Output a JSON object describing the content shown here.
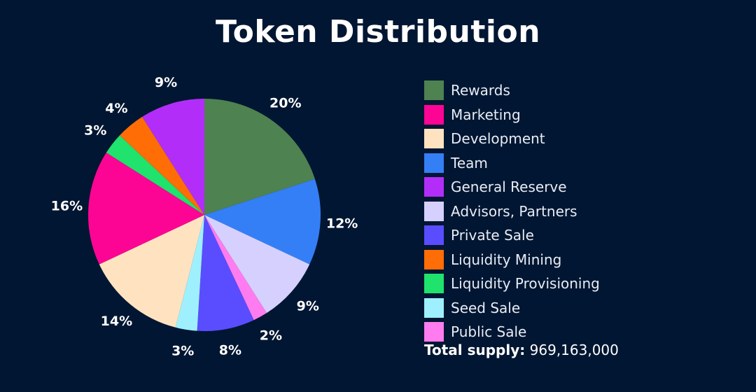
{
  "title": "Token Distribution",
  "total": {
    "label": "Total supply:",
    "value": "969,163,000"
  },
  "chart_data": {
    "type": "pie",
    "start": "12 o'clock",
    "direction": "clockwise",
    "slices": [
      {
        "name": "Rewards",
        "value": 20,
        "label": "20%",
        "color": "#4e8251"
      },
      {
        "name": "Team",
        "value": 12,
        "label": "12%",
        "color": "#347ff6"
      },
      {
        "name": "Advisors, Partners",
        "value": 9,
        "label": "9%",
        "color": "#d6d0ff"
      },
      {
        "name": "Public Sale",
        "value": 2,
        "label": "2%",
        "color": "#ff7cf0"
      },
      {
        "name": "Private Sale",
        "value": 8,
        "label": "8%",
        "color": "#5a4dff"
      },
      {
        "name": "Seed Sale",
        "value": 3,
        "label": "3%",
        "color": "#9ff0ff"
      },
      {
        "name": "Development",
        "value": 14,
        "label": "14%",
        "color": "#ffe3c0"
      },
      {
        "name": "Marketing",
        "value": 16,
        "label": "16%",
        "color": "#fc0594"
      },
      {
        "name": "Liquidity Provisioning",
        "value": 3,
        "label": "3%",
        "color": "#1fe36c"
      },
      {
        "name": "Liquidity Mining",
        "value": 4,
        "label": "4%",
        "color": "#ff6d07"
      },
      {
        "name": "General Reserve",
        "value": 9,
        "label": "9%",
        "color": "#b22ef8"
      }
    ],
    "legend": {
      "placement": "right",
      "order": [
        "Rewards",
        "Marketing",
        "Development",
        "Team",
        "General Reserve",
        "Advisors, Partners",
        "Private Sale",
        "Liquidity Mining",
        "Liquidity Provisioning",
        "Seed Sale",
        "Public Sale"
      ]
    }
  }
}
